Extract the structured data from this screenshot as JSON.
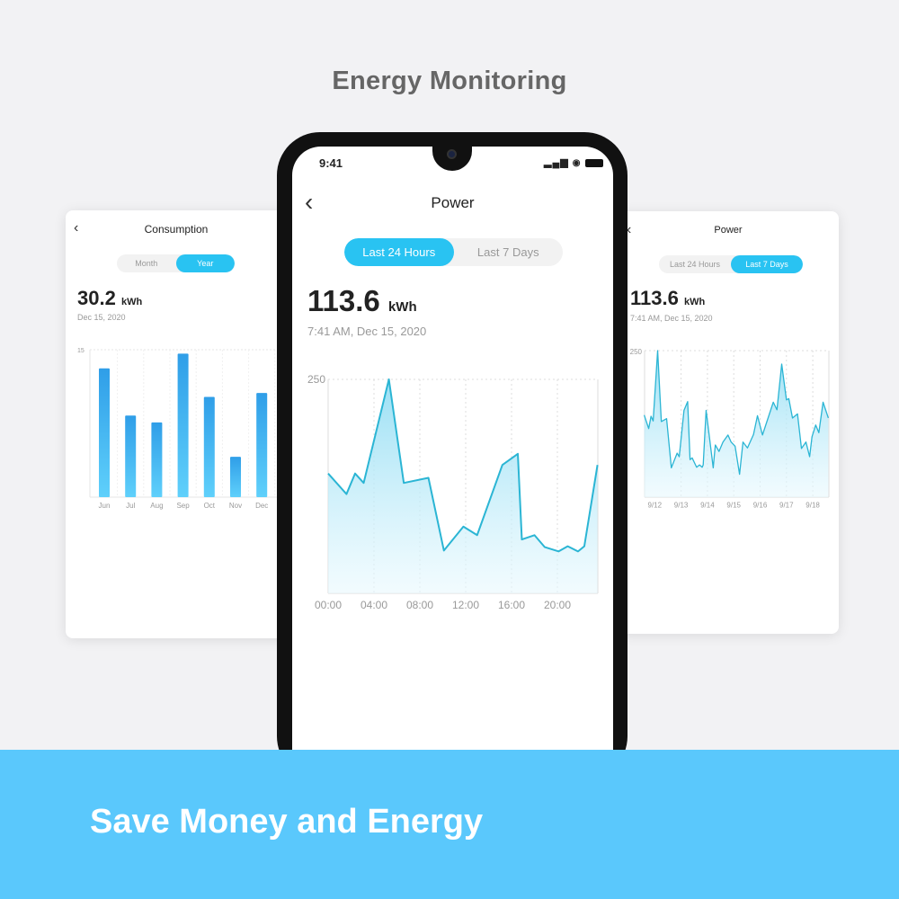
{
  "headline": "Energy Monitoring",
  "slogan": "Save Money and Energy",
  "colors": {
    "accent": "#29c3f2",
    "banner": "#5ac8fc",
    "line": "#2bb5d4"
  },
  "left_card": {
    "title": "Consumption",
    "back_icon": "chevron-left-icon",
    "toggle": [
      "Month",
      "Year"
    ],
    "selected": "Year",
    "value": "30.2",
    "unit": "kWh",
    "date": "Dec 15, 2020"
  },
  "phone": {
    "status": {
      "time": "9:41",
      "icons": [
        "signal-icon",
        "wifi-icon",
        "battery-icon"
      ]
    },
    "title": "Power",
    "back_icon": "chevron-left-icon",
    "toggle": [
      "Last 24 Hours",
      "Last 7 Days"
    ],
    "selected": "Last 24 Hours",
    "value": "113.6",
    "unit": "kWh",
    "date": "7:41 AM, Dec 15, 2020"
  },
  "right_card": {
    "title": "Power",
    "back_icon": "chevron-left-icon",
    "toggle": [
      "Last 24 Hours",
      "Last 7 Days"
    ],
    "selected": "Last 7 Days",
    "value": "113.6",
    "unit": "kWh",
    "date": "7:41 AM, Dec 15, 2020"
  },
  "chart_data": [
    {
      "id": "consumption-year",
      "type": "bar",
      "categories": [
        "Jun",
        "Jul",
        "Aug",
        "Sep",
        "Oct",
        "Nov",
        "Dec"
      ],
      "values": [
        13.1,
        8.3,
        7.6,
        14.6,
        10.2,
        4.1,
        10.6
      ],
      "ylim": [
        0,
        15
      ],
      "ytick_labels": [
        "15"
      ],
      "grid": true
    },
    {
      "id": "power-24h",
      "type": "area",
      "xlabel_ticks": [
        "00:00",
        "04:00",
        "08:00",
        "12:00",
        "16:00",
        "20:00"
      ],
      "x_hours": [
        0,
        1.6,
        2.35,
        3.1,
        5.3,
        6.6,
        8.75,
        10.1,
        11.8,
        13.0,
        15.2,
        16.55,
        16.9,
        18.0,
        18.9,
        20.1,
        20.9,
        21.8,
        22.35,
        23.5
      ],
      "values": [
        140,
        116,
        140,
        129,
        250,
        129,
        135,
        50,
        78,
        68,
        150,
        163,
        63,
        68,
        54,
        49,
        55,
        49,
        55,
        150
      ],
      "ylim": [
        0,
        250
      ],
      "ytick_labels": [
        "250"
      ],
      "grid": true
    },
    {
      "id": "power-7d",
      "type": "area",
      "xlabel_ticks": [
        "9/12",
        "9/13",
        "9/14",
        "9/15",
        "9/16",
        "9/17",
        "9/18"
      ],
      "x_day_of_september": [
        11.6,
        11.77,
        11.86,
        11.94,
        12.11,
        12.25,
        12.45,
        12.63,
        12.85,
        12.93,
        13.11,
        13.25,
        13.34,
        13.42,
        13.59,
        13.7,
        13.8,
        13.84,
        13.95,
        14.22,
        14.3,
        14.44,
        14.59,
        14.78,
        14.9,
        15.05,
        15.22,
        15.35,
        15.52,
        15.75,
        15.9,
        16.09,
        16.5,
        16.64,
        16.82,
        17.0,
        17.09,
        17.23,
        17.42,
        17.57,
        17.74,
        17.88,
        17.97,
        18.11,
        18.23,
        18.39,
        18.59
      ],
      "values": [
        140,
        117,
        138,
        130,
        250,
        129,
        134,
        50,
        75,
        69,
        148,
        163,
        64,
        67,
        51,
        55,
        51,
        55,
        148,
        50,
        89,
        78,
        94,
        106,
        94,
        87,
        39,
        94,
        84,
        107,
        139,
        106,
        162,
        149,
        227,
        166,
        168,
        135,
        142,
        83,
        94,
        69,
        103,
        123,
        110,
        162,
        135
      ],
      "ylim": [
        0,
        250
      ],
      "ytick_labels": [
        "250"
      ],
      "grid": true
    }
  ]
}
